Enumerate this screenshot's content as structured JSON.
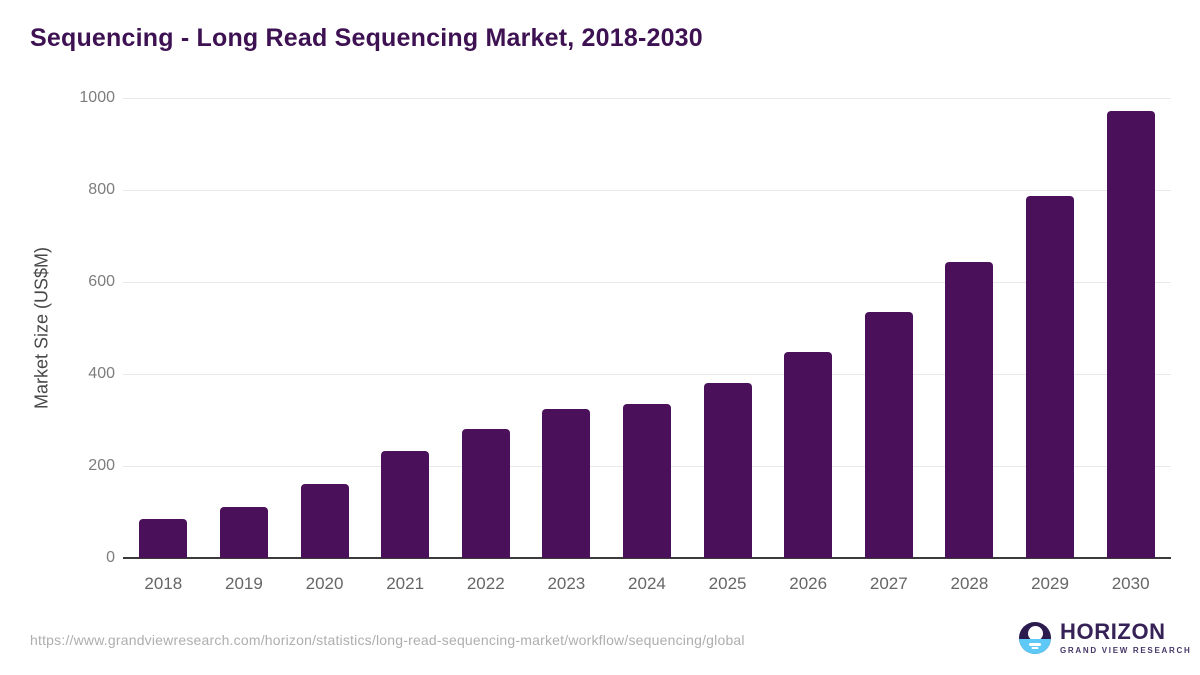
{
  "title": "Sequencing - Long Read Sequencing Market, 2018-2030",
  "chart_data": {
    "type": "bar",
    "categories": [
      "2018",
      "2019",
      "2020",
      "2021",
      "2022",
      "2023",
      "2024",
      "2025",
      "2026",
      "2027",
      "2028",
      "2029",
      "2030"
    ],
    "values": [
      85,
      110,
      161,
      232,
      280,
      323,
      334,
      381,
      447,
      534,
      643,
      787,
      972
    ],
    "title": "Sequencing - Long Read Sequencing Market, 2018-2030",
    "xlabel": "",
    "ylabel": "Market Size (US$M)",
    "ylim": [
      0,
      1000
    ],
    "yticks": [
      0,
      200,
      400,
      600,
      800,
      1000
    ],
    "grid": true,
    "legend": "none",
    "bar_color": "#4a115a"
  },
  "footer": {
    "source_url": "https://www.grandviewresearch.com/horizon/statistics/long-read-sequencing-market/workflow/sequencing/global",
    "logo": {
      "name": "HORIZON",
      "subtitle": "GRAND VIEW RESEARCH",
      "icon": "horizon-sunset-circle-icon",
      "icon_colors": {
        "top": "#2b1b4e",
        "bottom": "#5ec9f6"
      }
    }
  },
  "colors": {
    "title_text": "#3d1152",
    "bar": "#4a115a",
    "gridline": "#e9e9e9",
    "axis_line": "#3a3a3a",
    "tick_text": "#7d7d7d",
    "x_tick_text": "#666666",
    "url_text": "#aeaeae"
  }
}
